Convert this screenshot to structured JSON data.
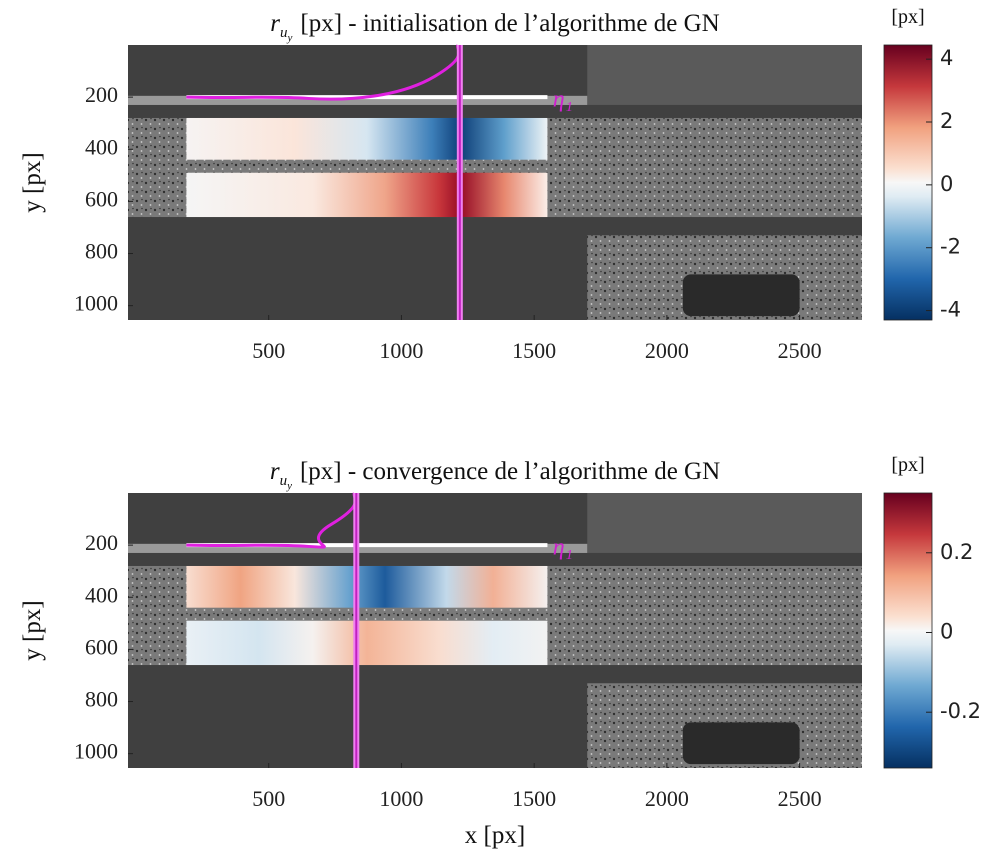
{
  "chart_data": [
    {
      "type": "heatmap",
      "title": {
        "symbol": "r",
        "sub": "u",
        "subsub": "y",
        "text": "[px] - initialisation de l’algorithme de GN"
      },
      "ylabel": "y [px]",
      "xlim": [
        -30,
        2735
      ],
      "ylim": [
        0,
        1055
      ],
      "xticks": [
        500,
        1000,
        1500,
        2000,
        2500
      ],
      "yticks": [
        200,
        400,
        600,
        800,
        1000
      ],
      "clim": [
        -4.3,
        4.45
      ],
      "cticks": [
        -4,
        -2,
        0,
        2,
        4
      ],
      "colorbar_label": "[px]",
      "annotation": "η₁",
      "line_x": 1220,
      "colormap": "RdBu"
    },
    {
      "type": "heatmap",
      "title": {
        "symbol": "r",
        "sub": "u",
        "subsub": "y",
        "text": "[px] - convergence de l’algorithme de GN"
      },
      "ylabel": "y [px]",
      "xlabel": "x [px]",
      "xlim": [
        -30,
        2735
      ],
      "ylim": [
        0,
        1055
      ],
      "xticks": [
        500,
        1000,
        1500,
        2000,
        2500
      ],
      "yticks": [
        200,
        400,
        600,
        800,
        1000
      ],
      "clim": [
        -0.34,
        0.35
      ],
      "cticks": [
        -0.2,
        0,
        0.2
      ],
      "colorbar_label": "[px]",
      "annotation": "η₁",
      "line_x": 830,
      "colormap": "RdBu"
    }
  ]
}
